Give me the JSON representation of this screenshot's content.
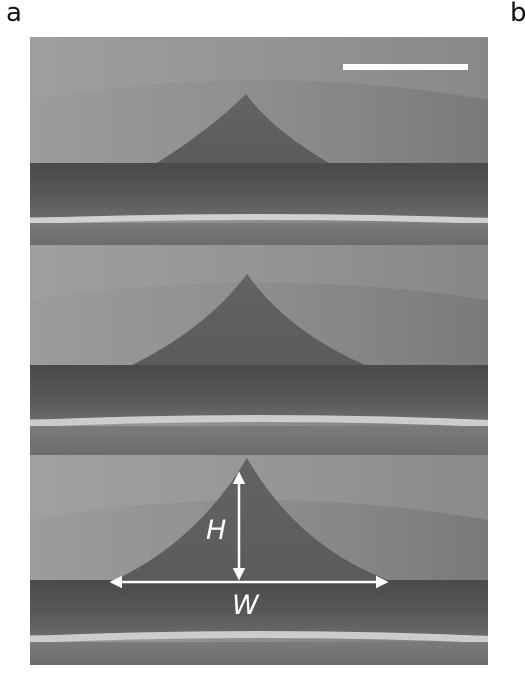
{
  "panel_labels": {
    "a": "a",
    "b": "b"
  },
  "dimension_labels": {
    "height": "H",
    "width": "W"
  },
  "colors": {
    "background_upper": "#8a8a8a",
    "peak": "#666666",
    "band_dark": "#535353",
    "band_light": "#cfcfcf",
    "lower_substrate": "#6a6a6a",
    "annotation": "#ffffff"
  }
}
